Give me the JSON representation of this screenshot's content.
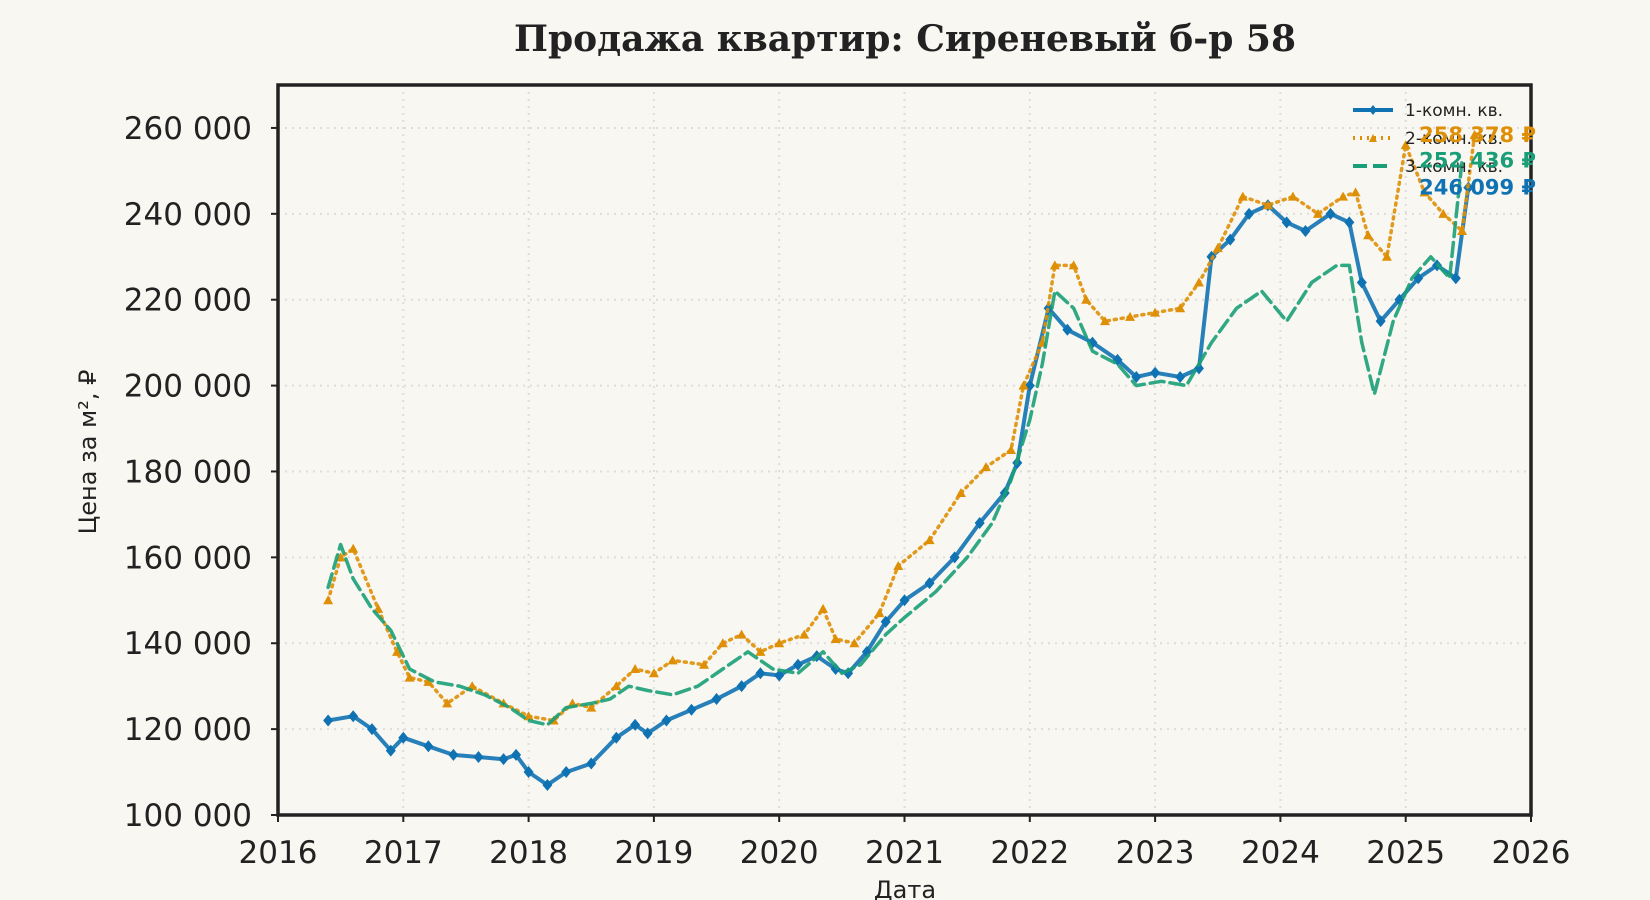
{
  "chart_data": {
    "type": "line",
    "title": "Продажа квартир: Сиреневый б-р 58",
    "xlabel": "Дата",
    "ylabel": "Цена за м², ₽",
    "xlim": [
      2016,
      2026
    ],
    "ylim": [
      100000,
      270000
    ],
    "x_ticks": [
      "2016",
      "2017",
      "2018",
      "2019",
      "2020",
      "2021",
      "2022",
      "2023",
      "2024",
      "2025",
      "2026"
    ],
    "y_ticks": [
      "100 000",
      "120 000",
      "140 000",
      "160 000",
      "180 000",
      "200 000",
      "220 000",
      "240 000",
      "260 000"
    ],
    "grid": true,
    "legend_position": "top-right",
    "colors": {
      "series1": "#0f72b2",
      "series2": "#de8f05",
      "series3": "#1a9e77"
    },
    "series": [
      {
        "name": "1-комн. кв.",
        "color": "#0f72b2",
        "style": "solid-diamond",
        "end_label": "246 099 ₽",
        "points": [
          [
            2016.4,
            122000
          ],
          [
            2016.6,
            123000
          ],
          [
            2016.75,
            120000
          ],
          [
            2016.9,
            115000
          ],
          [
            2017.0,
            118000
          ],
          [
            2017.2,
            116000
          ],
          [
            2017.4,
            114000
          ],
          [
            2017.6,
            113500
          ],
          [
            2017.8,
            113000
          ],
          [
            2017.9,
            114000
          ],
          [
            2018.0,
            110000
          ],
          [
            2018.15,
            107000
          ],
          [
            2018.3,
            110000
          ],
          [
            2018.5,
            112000
          ],
          [
            2018.7,
            118000
          ],
          [
            2018.85,
            121000
          ],
          [
            2018.95,
            119000
          ],
          [
            2019.1,
            122000
          ],
          [
            2019.3,
            124500
          ],
          [
            2019.5,
            127000
          ],
          [
            2019.7,
            130000
          ],
          [
            2019.85,
            133000
          ],
          [
            2020.0,
            132500
          ],
          [
            2020.15,
            135000
          ],
          [
            2020.3,
            137000
          ],
          [
            2020.45,
            134000
          ],
          [
            2020.55,
            133000
          ],
          [
            2020.7,
            138000
          ],
          [
            2020.85,
            145000
          ],
          [
            2021.0,
            150000
          ],
          [
            2021.2,
            154000
          ],
          [
            2021.4,
            160000
          ],
          [
            2021.6,
            168000
          ],
          [
            2021.8,
            175000
          ],
          [
            2021.9,
            182000
          ],
          [
            2022.0,
            200000
          ],
          [
            2022.15,
            218000
          ],
          [
            2022.3,
            213000
          ],
          [
            2022.5,
            210000
          ],
          [
            2022.7,
            206000
          ],
          [
            2022.85,
            202000
          ],
          [
            2023.0,
            203000
          ],
          [
            2023.2,
            202000
          ],
          [
            2023.35,
            204000
          ],
          [
            2023.45,
            230000
          ],
          [
            2023.6,
            234000
          ],
          [
            2023.75,
            240000
          ],
          [
            2023.9,
            242000
          ],
          [
            2024.05,
            238000
          ],
          [
            2024.2,
            236000
          ],
          [
            2024.4,
            240000
          ],
          [
            2024.55,
            238000
          ],
          [
            2024.65,
            224000
          ],
          [
            2024.8,
            215000
          ],
          [
            2024.95,
            220000
          ],
          [
            2025.1,
            225000
          ],
          [
            2025.25,
            228000
          ],
          [
            2025.4,
            225000
          ],
          [
            2025.5,
            246099
          ]
        ]
      },
      {
        "name": "2-комн. кв.",
        "color": "#de8f05",
        "style": "dotted-triangle",
        "end_label": "258 378 ₽",
        "points": [
          [
            2016.4,
            150000
          ],
          [
            2016.5,
            160000
          ],
          [
            2016.6,
            162000
          ],
          [
            2016.8,
            148000
          ],
          [
            2016.95,
            138000
          ],
          [
            2017.05,
            132000
          ],
          [
            2017.2,
            131000
          ],
          [
            2017.35,
            126000
          ],
          [
            2017.55,
            130000
          ],
          [
            2017.8,
            126000
          ],
          [
            2018.0,
            123000
          ],
          [
            2018.2,
            122000
          ],
          [
            2018.35,
            126000
          ],
          [
            2018.5,
            125000
          ],
          [
            2018.7,
            130000
          ],
          [
            2018.85,
            134000
          ],
          [
            2019.0,
            133000
          ],
          [
            2019.15,
            136000
          ],
          [
            2019.4,
            135000
          ],
          [
            2019.55,
            140000
          ],
          [
            2019.7,
            142000
          ],
          [
            2019.85,
            138000
          ],
          [
            2020.0,
            140000
          ],
          [
            2020.2,
            142000
          ],
          [
            2020.35,
            148000
          ],
          [
            2020.45,
            141000
          ],
          [
            2020.6,
            140000
          ],
          [
            2020.8,
            147000
          ],
          [
            2020.95,
            158000
          ],
          [
            2021.2,
            164000
          ],
          [
            2021.45,
            175000
          ],
          [
            2021.65,
            181000
          ],
          [
            2021.85,
            185000
          ],
          [
            2021.95,
            200000
          ],
          [
            2022.1,
            210000
          ],
          [
            2022.2,
            228000
          ],
          [
            2022.35,
            228000
          ],
          [
            2022.45,
            220000
          ],
          [
            2022.6,
            215000
          ],
          [
            2022.8,
            216000
          ],
          [
            2023.0,
            217000
          ],
          [
            2023.2,
            218000
          ],
          [
            2023.35,
            224000
          ],
          [
            2023.5,
            232000
          ],
          [
            2023.7,
            244000
          ],
          [
            2023.9,
            242000
          ],
          [
            2024.1,
            244000
          ],
          [
            2024.3,
            240000
          ],
          [
            2024.5,
            244000
          ],
          [
            2024.6,
            245000
          ],
          [
            2024.7,
            235000
          ],
          [
            2024.85,
            230000
          ],
          [
            2025.0,
            256000
          ],
          [
            2025.15,
            245000
          ],
          [
            2025.3,
            240000
          ],
          [
            2025.45,
            236000
          ],
          [
            2025.55,
            258378
          ]
        ]
      },
      {
        "name": "3-комн. кв.",
        "color": "#1a9e77",
        "style": "dashed",
        "end_label": "252 436 ₽",
        "points": [
          [
            2016.4,
            153000
          ],
          [
            2016.5,
            163000
          ],
          [
            2016.6,
            155000
          ],
          [
            2016.75,
            148000
          ],
          [
            2016.9,
            143000
          ],
          [
            2017.05,
            134000
          ],
          [
            2017.25,
            131000
          ],
          [
            2017.45,
            130000
          ],
          [
            2017.65,
            128000
          ],
          [
            2017.85,
            125000
          ],
          [
            2018.0,
            122000
          ],
          [
            2018.15,
            121000
          ],
          [
            2018.3,
            125000
          ],
          [
            2018.5,
            126000
          ],
          [
            2018.65,
            127000
          ],
          [
            2018.8,
            130000
          ],
          [
            2018.95,
            129000
          ],
          [
            2019.15,
            128000
          ],
          [
            2019.35,
            130000
          ],
          [
            2019.55,
            134000
          ],
          [
            2019.75,
            138000
          ],
          [
            2019.95,
            134000
          ],
          [
            2020.15,
            133000
          ],
          [
            2020.35,
            138000
          ],
          [
            2020.5,
            133000
          ],
          [
            2020.65,
            135000
          ],
          [
            2020.85,
            142000
          ],
          [
            2021.0,
            146000
          ],
          [
            2021.25,
            152000
          ],
          [
            2021.5,
            160000
          ],
          [
            2021.7,
            168000
          ],
          [
            2021.85,
            178000
          ],
          [
            2022.0,
            192000
          ],
          [
            2022.1,
            205000
          ],
          [
            2022.2,
            222000
          ],
          [
            2022.35,
            218000
          ],
          [
            2022.5,
            208000
          ],
          [
            2022.7,
            205000
          ],
          [
            2022.85,
            200000
          ],
          [
            2023.05,
            201000
          ],
          [
            2023.25,
            200000
          ],
          [
            2023.45,
            210000
          ],
          [
            2023.65,
            218000
          ],
          [
            2023.85,
            222000
          ],
          [
            2024.05,
            215000
          ],
          [
            2024.25,
            224000
          ],
          [
            2024.45,
            228000
          ],
          [
            2024.55,
            228000
          ],
          [
            2024.65,
            210000
          ],
          [
            2024.75,
            198000
          ],
          [
            2024.9,
            215000
          ],
          [
            2025.05,
            225000
          ],
          [
            2025.2,
            230000
          ],
          [
            2025.35,
            225000
          ],
          [
            2025.45,
            252436
          ]
        ]
      }
    ]
  }
}
